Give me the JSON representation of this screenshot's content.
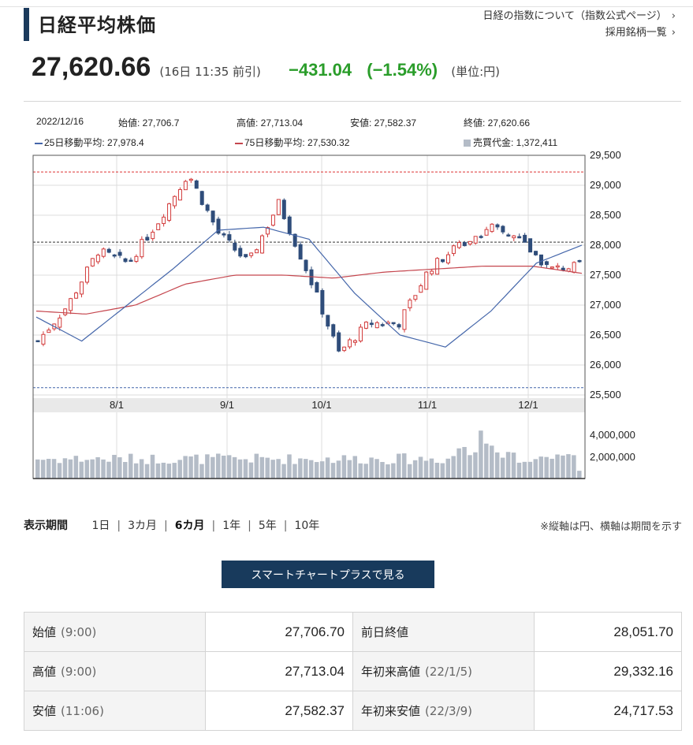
{
  "header": {
    "title": "日経平均株価",
    "link_index_info": "日経の指数について（指数公式ページ）",
    "link_constituents": "採用銘柄一覧"
  },
  "quote": {
    "price": "27,620.66",
    "time": "(16日 11:35 前引)",
    "change": "−431.04",
    "change_pct": "(−1.54%)",
    "unit": "(単位:円)"
  },
  "ohlc_info": {
    "date": "2022/12/16",
    "open": "始値: 27,706.7",
    "high": "高値: 27,713.04",
    "low": "安値: 27,582.37",
    "close": "終値: 27,620.66",
    "ma25": "25日移動平均: 27,978.4",
    "ma75": "75日移動平均: 27,530.32",
    "turnover": "売買代金: 1,372,411"
  },
  "colors": {
    "up": "#d23a3a",
    "down": "#2f4d7a",
    "ma25": "#4466aa",
    "ma75": "#c5464e",
    "volume": "#b4bcc7",
    "green": "#2a9d2a"
  },
  "chart_data": {
    "type": "candlestick",
    "price_axis": {
      "ylim": [
        25500,
        29500
      ],
      "ticks": [
        "29,500",
        "29,000",
        "28,500",
        "28,000",
        "27,500",
        "27,000",
        "26,500",
        "26,000",
        "25,500"
      ]
    },
    "x_ticks": [
      "8/1",
      "9/1",
      "10/1",
      "11/1",
      "12/1"
    ],
    "reference_lines": {
      "high": 29222.77,
      "low": 25621.96,
      "prev_close": 28051.7
    },
    "volume_axis": {
      "ticks": [
        "4,000,000",
        "2,000,000"
      ]
    },
    "ma25_anchor_values": [
      26800,
      26400,
      27000,
      27600,
      28250,
      28300,
      28100,
      27200,
      26500,
      26300,
      26900,
      27700,
      28000
    ],
    "ma75_anchor_values": [
      26900,
      26850,
      27000,
      27350,
      27500,
      27500,
      27450,
      27550,
      27600,
      27650,
      27650,
      27530
    ],
    "close_anchor_values": [
      26400,
      27000,
      27900,
      27700,
      28400,
      29200,
      28200,
      27700,
      28700,
      27500,
      26200,
      26700,
      26700,
      27600,
      28000,
      28300,
      28100,
      27600,
      27650
    ]
  },
  "period": {
    "label": "表示期間",
    "options": [
      "1日",
      "3カ月",
      "6カ月",
      "1年",
      "5年",
      "10年"
    ],
    "active_index": 2,
    "note": "※縦軸は円、横軸は期間を示す"
  },
  "smart_button": "スマートチャートプラスで見る",
  "stats": {
    "rows": [
      {
        "k1": "始値",
        "s1": "(9:00)",
        "v1": "27,706.70",
        "k2": "前日終値",
        "s2": "",
        "v2": "28,051.70"
      },
      {
        "k1": "高値",
        "s1": "(9:00)",
        "v1": "27,713.04",
        "k2": "年初来高値",
        "s2": "(22/1/5)",
        "v2": "29,332.16"
      },
      {
        "k1": "安値",
        "s1": "(11:06)",
        "v1": "27,582.37",
        "k2": "年初来安値",
        "s2": "(22/3/9)",
        "v2": "24,717.53"
      }
    ]
  }
}
